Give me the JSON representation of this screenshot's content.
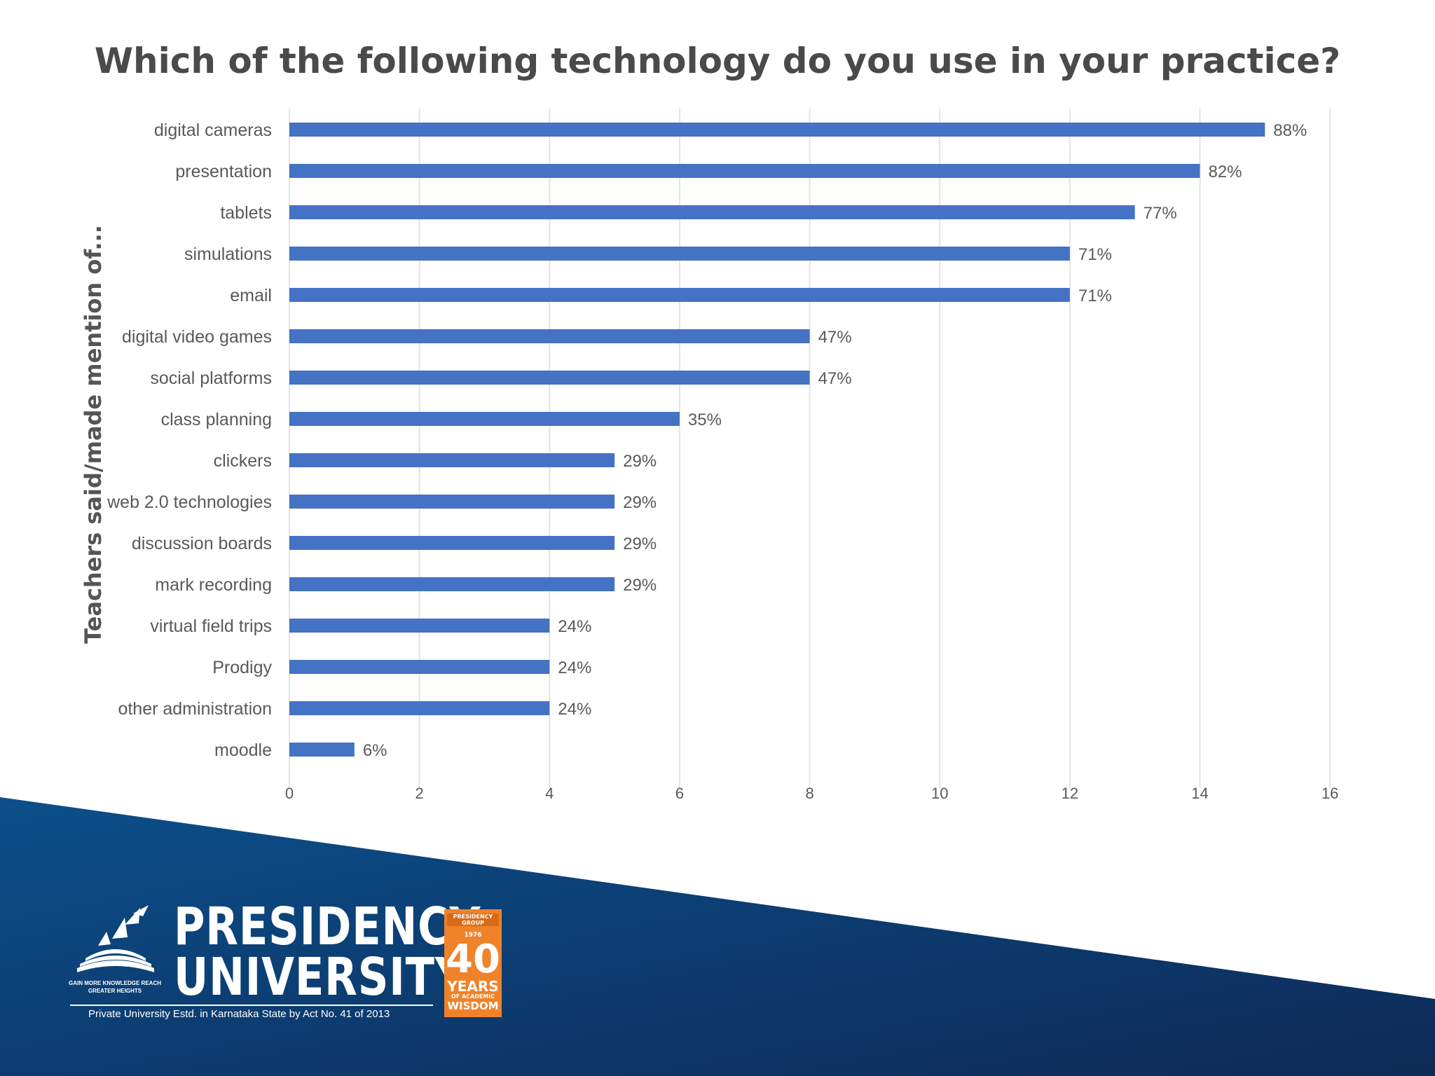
{
  "chart_data": {
    "type": "bar",
    "orientation": "horizontal",
    "title": "Which of the following technology do you use in your practice?",
    "ylabel": "Teachers said/made mention of...",
    "categories": [
      "digital cameras",
      "presentation",
      "tablets",
      "simulations",
      "email",
      "digital video games",
      "social platforms",
      "class planning",
      "clickers",
      "web 2.0 technologies",
      "discussion boards",
      "mark recording",
      "virtual field trips",
      "Prodigy",
      "other administration",
      "moodle"
    ],
    "values": [
      15,
      14,
      13,
      12,
      12,
      8,
      8,
      6,
      5,
      5,
      5,
      5,
      4,
      4,
      4,
      1
    ],
    "data_labels": [
      "88%",
      "82%",
      "77%",
      "71%",
      "71%",
      "47%",
      "47%",
      "35%",
      "29%",
      "29%",
      "29%",
      "29%",
      "24%",
      "24%",
      "24%",
      "6%"
    ],
    "x_ticks": [
      0,
      2,
      4,
      6,
      8,
      10,
      12,
      14,
      16
    ],
    "xlim": [
      0,
      16
    ],
    "grid": "vertical",
    "bar_color": "#4472c4"
  },
  "footer": {
    "brand_line1": "PRESIDENCY",
    "brand_line2": "UNIVERSITY",
    "tagline": "GAIN MORE KNOWLEDGE REACH GREATER HEIGHTS",
    "subtitle": "Private University Estd. in Karnataka State by Act No. 41 of 2013",
    "badge": {
      "top": "PRESIDENCY GROUP",
      "year": "1976",
      "number": "40",
      "years": "YEARS",
      "small": "OF ACADEMIC",
      "wisdom": "WISDOM"
    },
    "colors": {
      "band_light": "#0b4f8a",
      "band_dark": "#0e2a57",
      "badge": "#f0822a"
    }
  }
}
